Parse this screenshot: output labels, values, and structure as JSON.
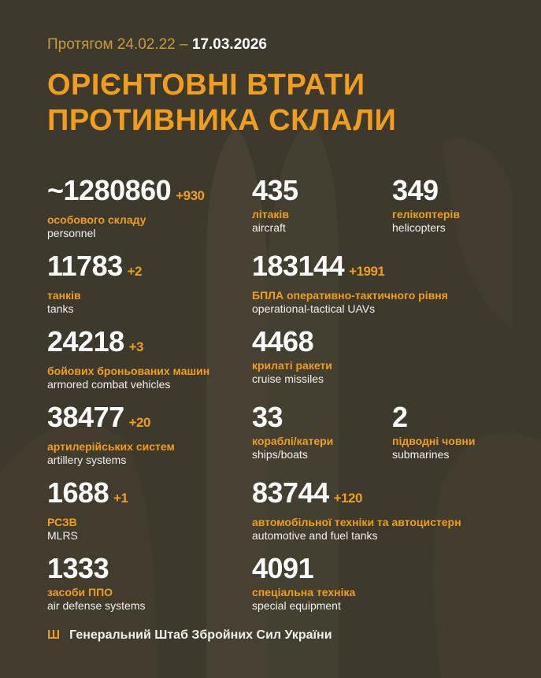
{
  "header": {
    "period_prefix": "Протягом 24.02.22 –",
    "period_end": "17.03.2026",
    "title_line1": "ОРІЄНТОВНІ ВТРАТИ",
    "title_line2": "ПРОТИВНИКА СКЛАЛИ"
  },
  "colors": {
    "accent": "#f29e1b",
    "background": "#3d392c",
    "text": "#ffffff"
  },
  "stats": [
    {
      "value": "~1280860",
      "delta": "+930",
      "ua": "особового складу",
      "en": "personnel"
    },
    {
      "value": "435",
      "delta": "",
      "ua": "літаків",
      "en": "aircraft"
    },
    {
      "value": "349",
      "delta": "",
      "ua": "гелікоптерів",
      "en": "helicopters"
    },
    {
      "value": "11783",
      "delta": "+2",
      "ua": "танків",
      "en": "tanks"
    },
    {
      "value": "183144",
      "delta": "+1991",
      "ua": "БПЛА оперативно-тактичного рівня",
      "en": "operational-tactical UAVs"
    },
    {
      "value": "24218",
      "delta": "+3",
      "ua": "бойових броньованих машин",
      "en": "armored combat vehicles"
    },
    {
      "value": "4468",
      "delta": "",
      "ua": "крилаті ракети",
      "en": "cruise missiles"
    },
    {
      "value": "38477",
      "delta": "+20",
      "ua": "артилерійських систем",
      "en": "artillery systems"
    },
    {
      "value": "33",
      "delta": "",
      "ua": "кораблі/катери",
      "en": "ships/boats"
    },
    {
      "value": "2",
      "delta": "",
      "ua": "підводні човни",
      "en": "submarines"
    },
    {
      "value": "1688",
      "delta": "+1",
      "ua": "РСЗВ",
      "en": "MLRS"
    },
    {
      "value": "83744",
      "delta": "+120",
      "ua": "автомобільної техніки та автоцистерн",
      "en": "automotive and fuel tanks"
    },
    {
      "value": "1333",
      "delta": "",
      "ua": "засоби ППО",
      "en": "air defense systems"
    },
    {
      "value": "4091",
      "delta": "",
      "ua": "спеціальна техніка",
      "en": "special equipment"
    }
  ],
  "footer": {
    "icon": "trident-icon",
    "text": "Генеральний Штаб Збройних Сил України"
  }
}
